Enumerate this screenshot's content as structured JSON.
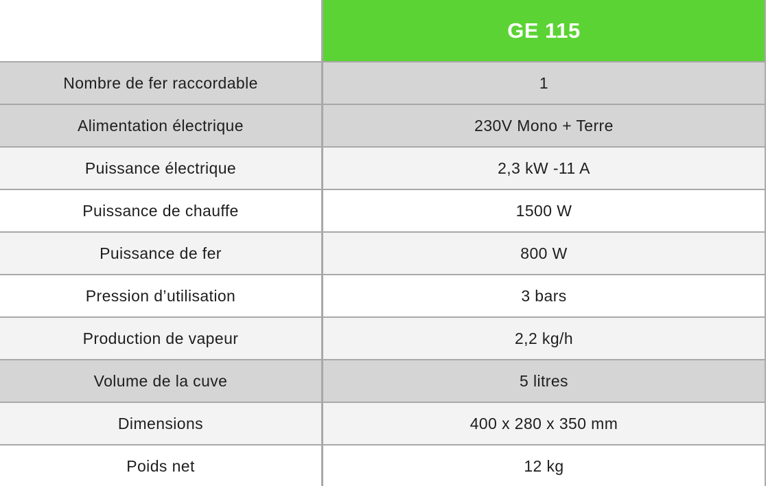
{
  "header": {
    "product_name": "GE 115"
  },
  "colors": {
    "header-bg": "#5cd335",
    "header-text": "#ffffff",
    "row-dark": "#d5d5d5",
    "row-light": "#f3f3f3",
    "row-white": "#ffffff",
    "border": "#a8a8a8",
    "text": "#1e1e1e"
  },
  "table": {
    "rows": [
      {
        "label": "Nombre de fer raccordable",
        "value": "1",
        "tone": "dark"
      },
      {
        "label": "Alimentation électrique",
        "value": "230V Mono + Terre",
        "tone": "dark"
      },
      {
        "label": "Puissance électrique",
        "value": "2,3 kW -11 A",
        "tone": "light"
      },
      {
        "label": "Puissance de chauffe",
        "value": "1500 W",
        "tone": "white"
      },
      {
        "label": "Puissance de fer",
        "value": "800 W",
        "tone": "light"
      },
      {
        "label": "Pression d’utilisation",
        "value": "3 bars",
        "tone": "white"
      },
      {
        "label": "Production de vapeur",
        "value": "2,2 kg/h",
        "tone": "light"
      },
      {
        "label": "Volume de la cuve",
        "value": "5 litres",
        "tone": "dark"
      },
      {
        "label": "Dimensions",
        "value": "400 x 280 x 350 mm",
        "tone": "light"
      },
      {
        "label": "Poids net",
        "value": "12 kg",
        "tone": "white"
      }
    ]
  }
}
